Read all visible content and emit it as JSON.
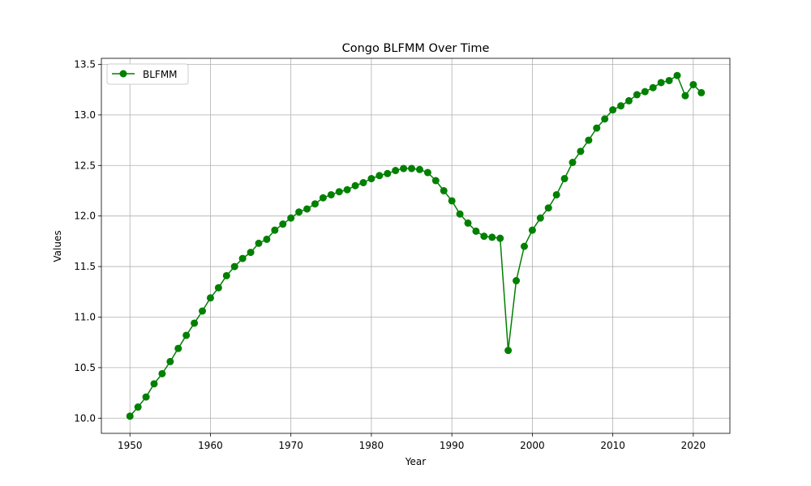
{
  "chart_data": {
    "type": "line",
    "title": "Congo BLFMM Over Time",
    "xlabel": "Year",
    "ylabel": "Values",
    "xlim": [
      1946.45,
      2024.55
    ],
    "ylim": [
      9.85,
      13.56
    ],
    "xticks": [
      1950,
      1960,
      1970,
      1980,
      1990,
      2000,
      2010,
      2020
    ],
    "yticks": [
      10.0,
      10.5,
      11.0,
      11.5,
      12.0,
      12.5,
      13.0,
      13.5
    ],
    "grid": true,
    "legend_position": "top-left",
    "series": [
      {
        "name": "BLFMM",
        "color": "#008000",
        "marker": "circle",
        "x": [
          1950,
          1951,
          1952,
          1953,
          1954,
          1955,
          1956,
          1957,
          1958,
          1959,
          1960,
          1961,
          1962,
          1963,
          1964,
          1965,
          1966,
          1967,
          1968,
          1969,
          1970,
          1971,
          1972,
          1973,
          1974,
          1975,
          1976,
          1977,
          1978,
          1979,
          1980,
          1981,
          1982,
          1983,
          1984,
          1985,
          1986,
          1987,
          1988,
          1989,
          1990,
          1991,
          1992,
          1993,
          1994,
          1995,
          1996,
          1997,
          1998,
          1999,
          2000,
          2001,
          2002,
          2003,
          2004,
          2005,
          2006,
          2007,
          2008,
          2009,
          2010,
          2011,
          2012,
          2013,
          2014,
          2015,
          2016,
          2017,
          2018,
          2019,
          2020,
          2021
        ],
        "values": [
          10.02,
          10.11,
          10.21,
          10.34,
          10.44,
          10.56,
          10.69,
          10.82,
          10.94,
          11.06,
          11.19,
          11.29,
          11.41,
          11.5,
          11.58,
          11.64,
          11.73,
          11.77,
          11.86,
          11.92,
          11.98,
          12.04,
          12.07,
          12.12,
          12.18,
          12.21,
          12.24,
          12.26,
          12.3,
          12.33,
          12.37,
          12.4,
          12.42,
          12.45,
          12.47,
          12.47,
          12.46,
          12.43,
          12.35,
          12.25,
          12.15,
          12.02,
          11.93,
          11.85,
          11.8,
          11.79,
          11.78,
          10.67,
          11.36,
          11.7,
          11.86,
          11.98,
          12.08,
          12.21,
          12.37,
          12.53,
          12.64,
          12.75,
          12.87,
          12.96,
          13.05,
          13.09,
          13.14,
          13.2,
          13.23,
          13.27,
          13.32,
          13.34,
          13.39,
          13.19,
          13.3,
          13.22
        ]
      }
    ]
  }
}
